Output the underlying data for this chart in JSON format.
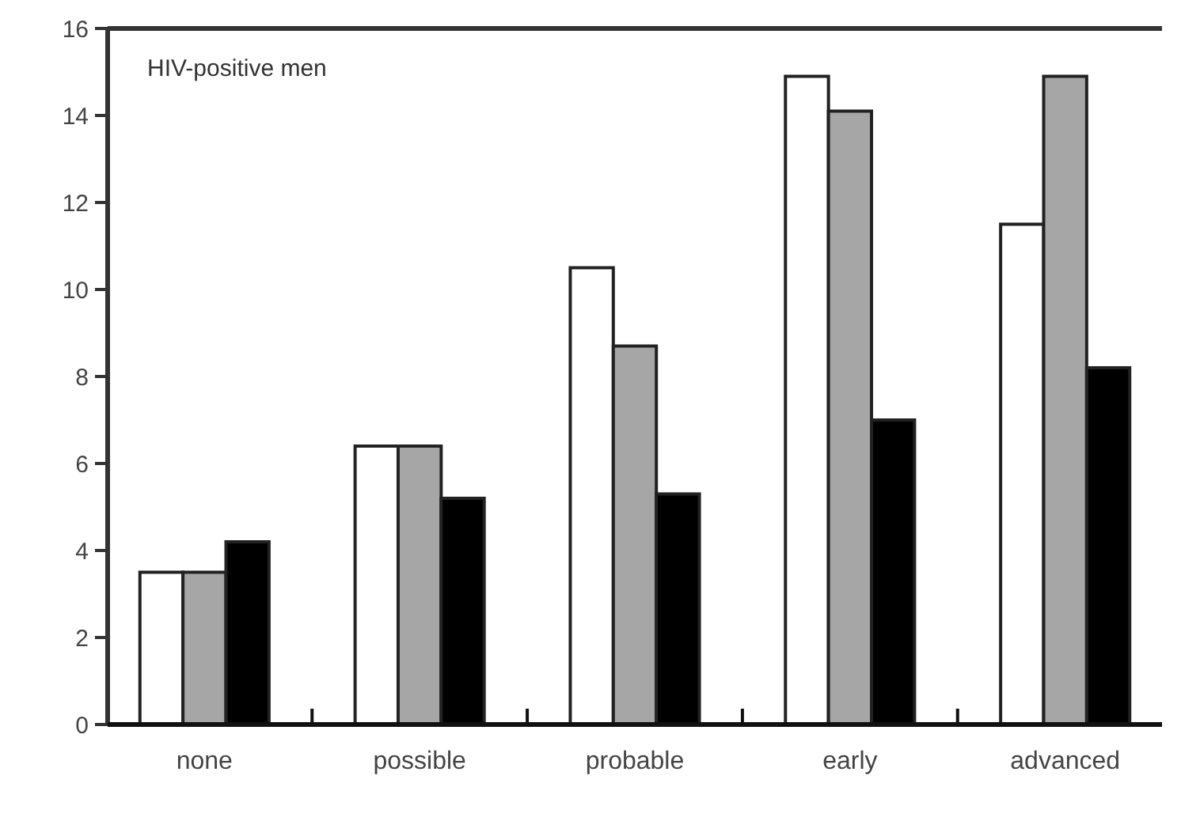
{
  "chart_data": {
    "type": "bar",
    "annotations": [
      "HIV-positive men"
    ],
    "categories": [
      "none",
      "possible",
      "probable",
      "early",
      "advanced"
    ],
    "series": [
      {
        "color": "#ffffff",
        "values": [
          3.5,
          6.4,
          10.5,
          14.9,
          11.5
        ]
      },
      {
        "color": "#a6a6a6",
        "values": [
          3.5,
          6.4,
          8.7,
          14.1,
          14.9
        ]
      },
      {
        "color": "#000000",
        "values": [
          4.2,
          5.2,
          5.3,
          7.0,
          8.2
        ]
      }
    ],
    "ylim": [
      0,
      16
    ],
    "yticks": [
      0,
      2,
      4,
      6,
      8,
      10,
      12,
      14,
      16
    ]
  }
}
